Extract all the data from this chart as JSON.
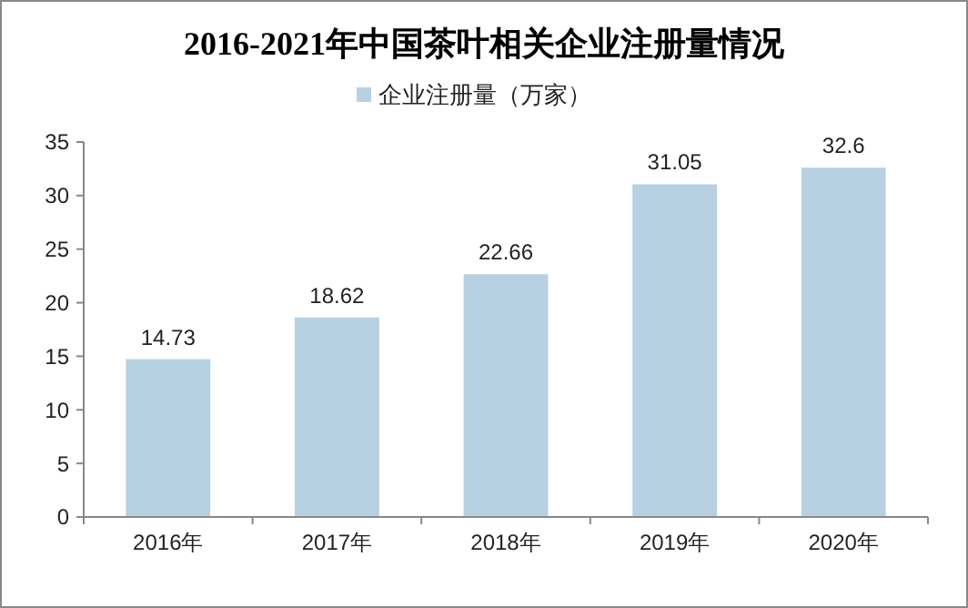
{
  "chart_data": {
    "type": "bar",
    "title": "2016-2021年中国茶叶相关企业注册量情况",
    "categories": [
      "2016年",
      "2017年",
      "2018年",
      "2019年",
      "2020年"
    ],
    "series": [
      {
        "name": "企业注册量（万家）",
        "color": "#b7d0e2",
        "values": [
          14.73,
          18.62,
          22.66,
          31.05,
          32.6
        ]
      }
    ],
    "ylim": [
      0,
      35
    ],
    "yticks": [
      0,
      5,
      10,
      15,
      20,
      25,
      30,
      35
    ],
    "grid": false,
    "legend": "top",
    "data_labels": true
  }
}
